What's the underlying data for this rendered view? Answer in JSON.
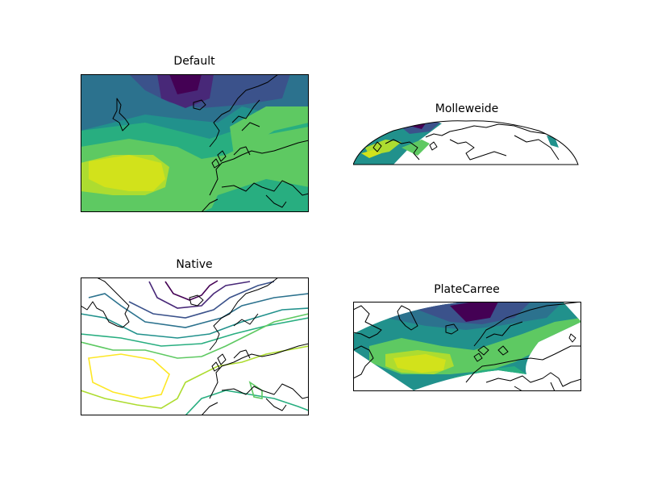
{
  "panels": [
    {
      "title": "Default"
    },
    {
      "title": "Molleweide"
    },
    {
      "title": "Native"
    },
    {
      "title": "PlateCarree"
    }
  ],
  "colors": {
    "deep_purple": "#440154",
    "purple": "#3b528b",
    "blue": "#2c728e",
    "teal": "#21918c",
    "green_teal": "#28ae80",
    "green": "#5ec962",
    "light_green": "#addc30",
    "yellow": "#fde725",
    "coast": "#000000",
    "frame": "#000000"
  }
}
